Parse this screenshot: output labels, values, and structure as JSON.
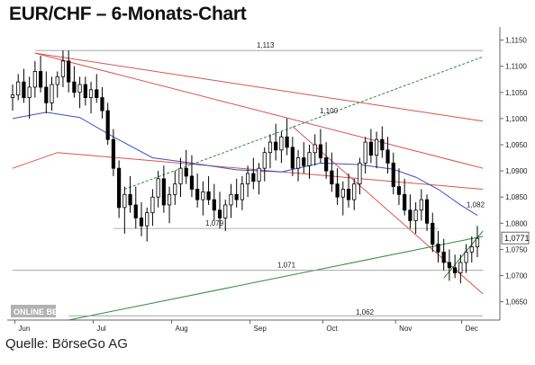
{
  "title": "EUR/CHF – 6-Monats-Chart",
  "source": "Quelle: BörseGo AG",
  "watermark": "ONLINE BETA",
  "chart_data": {
    "type": "candlestick",
    "title": "EUR/CHF – 6-Monats-Chart",
    "x_labels": [
      "Jun",
      "Jul",
      "Aug",
      "Sep",
      "Oct",
      "Nov",
      "Dec"
    ],
    "y_ticks": [
      "1,1150",
      "1,1100",
      "1,1050",
      "1,1000",
      "1,0950",
      "1,0900",
      "1,0850",
      "1,0800",
      "1,0750",
      "1,0700",
      "1,0650"
    ],
    "y_tick_values": [
      1.115,
      1.11,
      1.105,
      1.1,
      1.095,
      1.09,
      1.085,
      1.08,
      1.075,
      1.07,
      1.065
    ],
    "ylim": [
      1.0615,
      1.1175
    ],
    "last_price_label": "1,0771",
    "last_price": 1.0771,
    "annotations": [
      {
        "text": "1,113",
        "level": 1.113
      },
      {
        "text": "1,100",
        "level": 1.1
      },
      {
        "text": "1,082",
        "level": 1.082
      },
      {
        "text": "1,079",
        "level": 1.079
      },
      {
        "text": "1,071",
        "level": 1.071
      },
      {
        "text": "1,062",
        "level": 1.062
      }
    ],
    "colors": {
      "up": "#ffffff",
      "down": "#000000",
      "trend_red": "#d9534f",
      "trend_green": "#2e8b3a",
      "ma_blue": "#3a4fc8",
      "grid": "#b8b8b8"
    },
    "series": [
      {
        "type": "candles",
        "values": [
          [
            1.104,
            1.1065,
            1.1015,
            1.1045
          ],
          [
            1.1045,
            1.1085,
            1.1035,
            1.107
          ],
          [
            1.107,
            1.1095,
            1.103,
            1.104
          ],
          [
            1.104,
            1.108,
            1.1,
            1.106
          ],
          [
            1.106,
            1.111,
            1.104,
            1.109
          ],
          [
            1.109,
            1.112,
            1.105,
            1.106
          ],
          [
            1.106,
            1.109,
            1.101,
            1.103
          ],
          [
            1.103,
            1.108,
            1.1015,
            1.1065
          ],
          [
            1.1065,
            1.109,
            1.104,
            1.108
          ],
          [
            1.108,
            1.113,
            1.106,
            1.111
          ],
          [
            1.111,
            1.113,
            1.105,
            1.107
          ],
          [
            1.107,
            1.11,
            1.104,
            1.105
          ],
          [
            1.105,
            1.108,
            1.102,
            1.1065
          ],
          [
            1.1065,
            1.108,
            1.1025,
            1.104
          ],
          [
            1.104,
            1.107,
            1.101,
            1.1055
          ],
          [
            1.1055,
            1.1085,
            1.103,
            1.104
          ],
          [
            1.104,
            1.106,
            1.1,
            1.1015
          ],
          [
            1.1015,
            1.103,
            1.095,
            1.096
          ],
          [
            1.096,
            1.098,
            1.089,
            1.0905
          ],
          [
            1.0905,
            1.092,
            1.081,
            1.083
          ],
          [
            1.083,
            1.087,
            1.078,
            1.0855
          ],
          [
            1.0855,
            1.089,
            1.082,
            1.0835
          ],
          [
            1.0835,
            1.087,
            1.079,
            1.081
          ],
          [
            1.081,
            1.084,
            1.0775,
            1.0795
          ],
          [
            1.0795,
            1.083,
            1.0765,
            1.082
          ],
          [
            1.082,
            1.0865,
            1.0795,
            1.085
          ],
          [
            1.085,
            1.09,
            1.083,
            1.0885
          ],
          [
            1.0885,
            1.091,
            1.082,
            1.0835
          ],
          [
            1.0835,
            1.087,
            1.08,
            1.0855
          ],
          [
            1.0855,
            1.09,
            1.0835,
            1.0875
          ],
          [
            1.0875,
            1.0925,
            1.085,
            1.0905
          ],
          [
            1.0905,
            1.094,
            1.0875,
            1.089
          ],
          [
            1.089,
            1.093,
            1.085,
            1.0865
          ],
          [
            1.0865,
            1.0895,
            1.083,
            1.0845
          ],
          [
            1.0845,
            1.088,
            1.0815,
            1.086
          ],
          [
            1.086,
            1.089,
            1.0835,
            1.0845
          ],
          [
            1.0845,
            1.0875,
            1.0805,
            1.0825
          ],
          [
            1.0825,
            1.086,
            1.079,
            1.081
          ],
          [
            1.081,
            1.0845,
            1.0785,
            1.0835
          ],
          [
            1.0835,
            1.0875,
            1.081,
            1.0855
          ],
          [
            1.0855,
            1.0885,
            1.083,
            1.0845
          ],
          [
            1.0845,
            1.089,
            1.0825,
            1.0875
          ],
          [
            1.0875,
            1.091,
            1.085,
            1.0895
          ],
          [
            1.0895,
            1.0925,
            1.0865,
            1.088
          ],
          [
            1.088,
            1.0915,
            1.0855,
            1.0905
          ],
          [
            1.0905,
            1.0945,
            1.088,
            1.0935
          ],
          [
            1.0935,
            1.097,
            1.0905,
            1.0955
          ],
          [
            1.0955,
            1.099,
            1.092,
            1.094
          ],
          [
            1.094,
            1.0975,
            1.0915,
            1.0965
          ],
          [
            1.0965,
            1.1,
            1.093,
            1.0945
          ],
          [
            1.0945,
            1.0965,
            1.089,
            1.0905
          ],
          [
            1.0905,
            1.094,
            1.088,
            1.0925
          ],
          [
            1.0925,
            1.0955,
            1.0895,
            1.091
          ],
          [
            1.091,
            1.095,
            1.0885,
            1.0935
          ],
          [
            1.0935,
            1.097,
            1.091,
            1.095
          ],
          [
            1.095,
            1.098,
            1.0915,
            1.0925
          ],
          [
            1.0925,
            1.0955,
            1.0885,
            1.09
          ],
          [
            1.09,
            1.0935,
            1.086,
            1.0875
          ],
          [
            1.0875,
            1.0905,
            1.0835,
            1.085
          ],
          [
            1.085,
            1.088,
            1.0815,
            1.0865
          ],
          [
            1.0865,
            1.0895,
            1.083,
            1.0845
          ],
          [
            1.0845,
            1.0885,
            1.0825,
            1.0875
          ],
          [
            1.0875,
            1.0925,
            1.0855,
            1.0915
          ],
          [
            1.0915,
            1.0965,
            1.0895,
            1.0955
          ],
          [
            1.0955,
            1.098,
            1.0915,
            1.093
          ],
          [
            1.093,
            1.0975,
            1.0905,
            1.096
          ],
          [
            1.096,
            1.0985,
            1.0925,
            1.094
          ],
          [
            1.094,
            1.0965,
            1.0895,
            1.0915
          ],
          [
            1.0915,
            1.0935,
            1.0855,
            1.087
          ],
          [
            1.087,
            1.0905,
            1.0835,
            1.0855
          ],
          [
            1.0855,
            1.0885,
            1.0815,
            1.0825
          ],
          [
            1.0825,
            1.0855,
            1.079,
            1.0805
          ],
          [
            1.0805,
            1.084,
            1.078,
            1.0825
          ],
          [
            1.0825,
            1.0865,
            1.0805,
            1.0845
          ],
          [
            1.0845,
            1.0855,
            1.0785,
            1.08
          ],
          [
            1.08,
            1.082,
            1.0745,
            1.076
          ],
          [
            1.076,
            1.0785,
            1.0725,
            1.0745
          ],
          [
            1.0745,
            1.077,
            1.071,
            1.0725
          ],
          [
            1.0725,
            1.075,
            1.069,
            1.0715
          ],
          [
            1.0715,
            1.074,
            1.0695,
            1.0705
          ],
          [
            1.0705,
            1.074,
            1.0685,
            1.0725
          ],
          [
            1.0725,
            1.076,
            1.0705,
            1.0745
          ],
          [
            1.0745,
            1.0775,
            1.0725,
            1.0755
          ],
          [
            1.0755,
            1.0795,
            1.0735,
            1.0771
          ]
        ]
      },
      {
        "type": "ma_blue",
        "values": [
          [
            0,
            1.1
          ],
          [
            6,
            1.1012
          ],
          [
            12,
            1.1002
          ],
          [
            18,
            1.0965
          ],
          [
            25,
            1.0925
          ],
          [
            32,
            1.0915
          ],
          [
            40,
            1.0902
          ],
          [
            48,
            1.0898
          ],
          [
            55,
            1.0915
          ],
          [
            62,
            1.0912
          ],
          [
            68,
            1.0903
          ],
          [
            72,
            1.0888
          ],
          [
            76,
            1.0865
          ],
          [
            80,
            1.0835
          ],
          [
            83,
            1.0815
          ]
        ]
      }
    ],
    "trendlines": [
      {
        "color": "red",
        "from": [
          4,
          1.1125
        ],
        "to": [
          84,
          1.0995
        ]
      },
      {
        "color": "red",
        "from": [
          4,
          1.1125
        ],
        "to": [
          84,
          1.0905
        ]
      },
      {
        "color": "red",
        "from": [
          0,
          1.0905
        ],
        "to": [
          8,
          1.0935
        ],
        "then": [
          84,
          1.0865
        ]
      },
      {
        "color": "red",
        "from": [
          50,
          1.0985
        ],
        "to": [
          84,
          1.0665
        ]
      },
      {
        "color": "green",
        "from": [
          20,
          1.0865
        ],
        "to": [
          84,
          1.1118
        ]
      },
      {
        "color": "green",
        "from": [
          10,
          1.0615
        ],
        "to": [
          84,
          1.0775
        ]
      },
      {
        "color": "green",
        "from": [
          77,
          1.0695
        ],
        "to": [
          84,
          1.0785
        ]
      },
      {
        "color": "grey",
        "from": [
          4,
          1.113
        ],
        "to": [
          84,
          1.113
        ]
      },
      {
        "color": "grey",
        "from": [
          18,
          1.079
        ],
        "to": [
          76,
          1.079
        ]
      },
      {
        "color": "grey",
        "from": [
          0,
          1.071
        ],
        "to": [
          84,
          1.071
        ]
      },
      {
        "color": "grey",
        "from": [
          10,
          1.0623
        ],
        "to": [
          84,
          1.0623
        ]
      }
    ]
  }
}
